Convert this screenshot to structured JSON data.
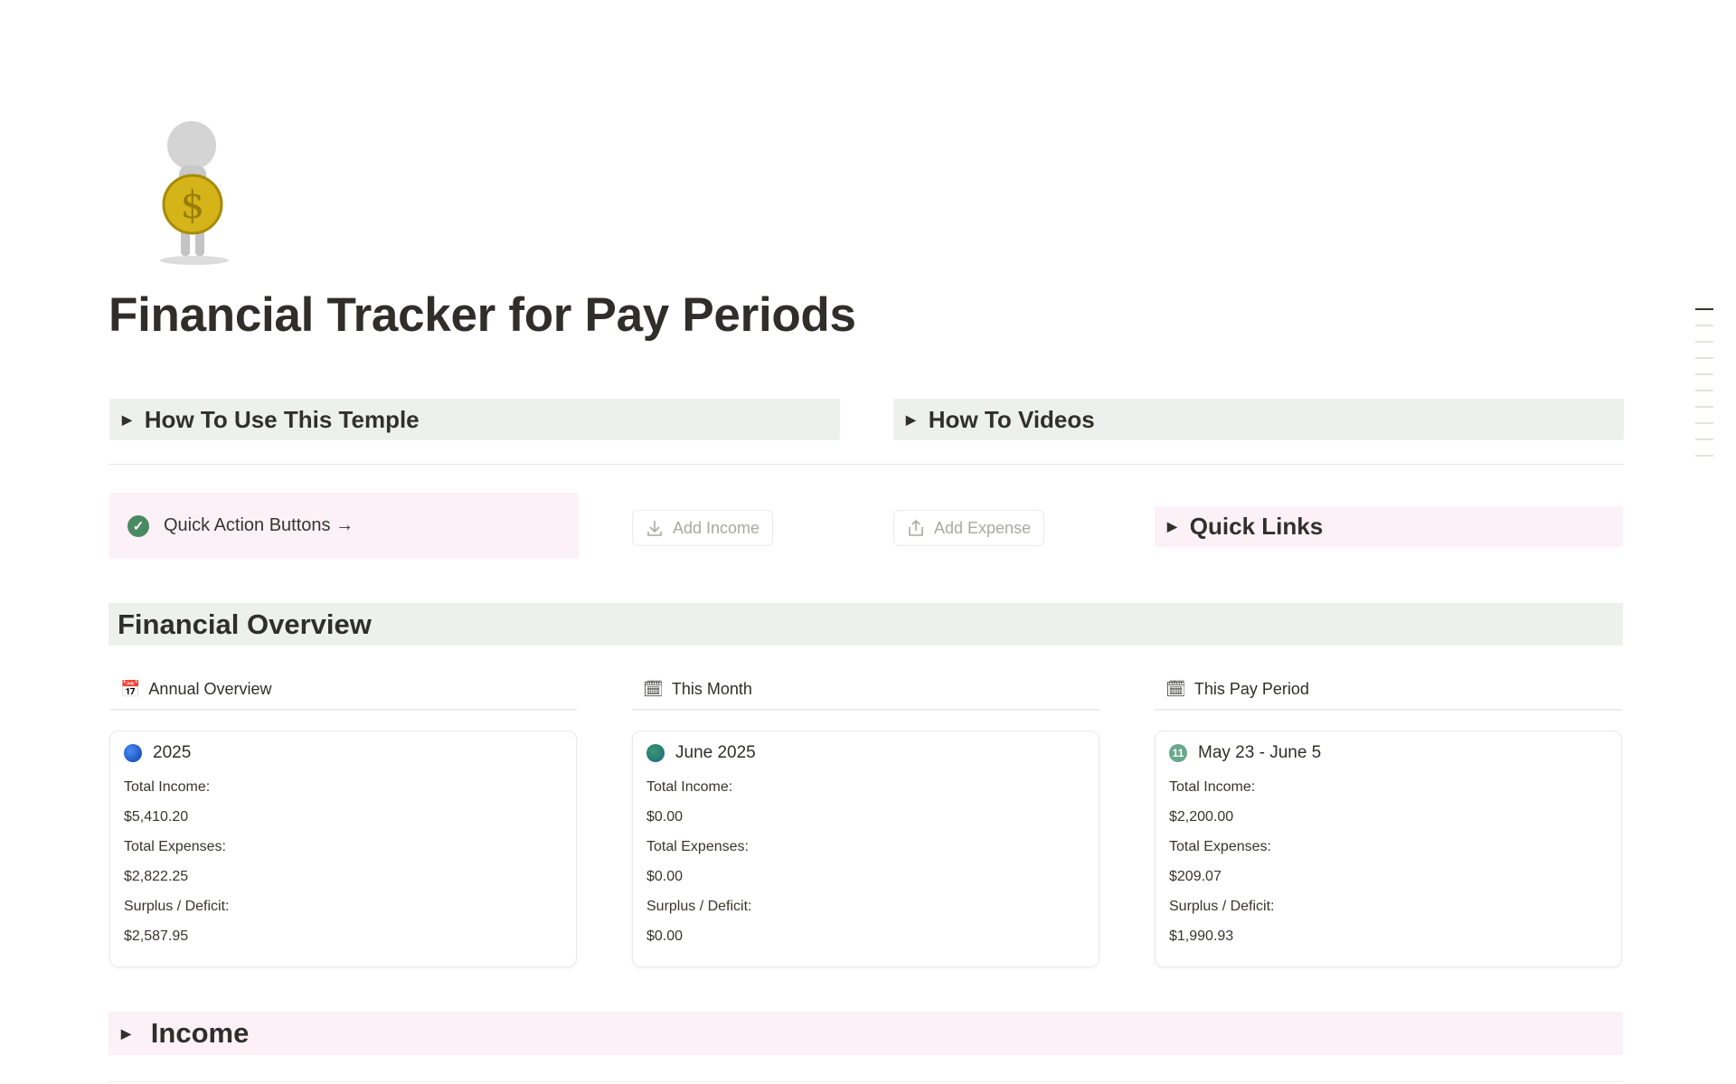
{
  "page": {
    "title": "Financial Tracker for Pay Periods",
    "icon": "person-holding-dollar-coin"
  },
  "toggles": [
    {
      "label": "How To Use This Temple"
    },
    {
      "label": "How To Videos"
    }
  ],
  "quick_actions": {
    "callout_label": "Quick Action Buttons →",
    "add_income": "Add Income",
    "add_expense": "Add Expense",
    "quick_links": "Quick Links"
  },
  "overview": {
    "heading": "Financial Overview",
    "columns": [
      {
        "header": "Annual Overview",
        "title": "2025",
        "icon": "blue-circle",
        "income_label": "Total Income:",
        "income": "$5,410.20",
        "expenses_label": "Total Expenses:",
        "expenses": "$2,822.25",
        "surplus_label": "Surplus / Deficit:",
        "surplus": "$2,587.95"
      },
      {
        "header": "This Month",
        "title": "June 2025",
        "icon": "globe",
        "income_label": "Total Income:",
        "income": "$0.00",
        "expenses_label": "Total Expenses:",
        "expenses": "$0.00",
        "surplus_label": "Surplus / Deficit:",
        "surplus": "$0.00"
      },
      {
        "header": "This Pay Period",
        "title": "May 23 - June 5",
        "icon": "number-11-circle",
        "income_label": "Total Income:",
        "income": "$2,200.00",
        "expenses_label": "Total Expenses:",
        "expenses": "$209.07",
        "surplus_label": "Surplus / Deficit:",
        "surplus": "$1,990.93"
      }
    ]
  },
  "income_section": {
    "label": "Income"
  },
  "colors": {
    "green_block": "#edf0ec",
    "pink_block": "#fcf1f6",
    "check": "#4a8a62"
  }
}
